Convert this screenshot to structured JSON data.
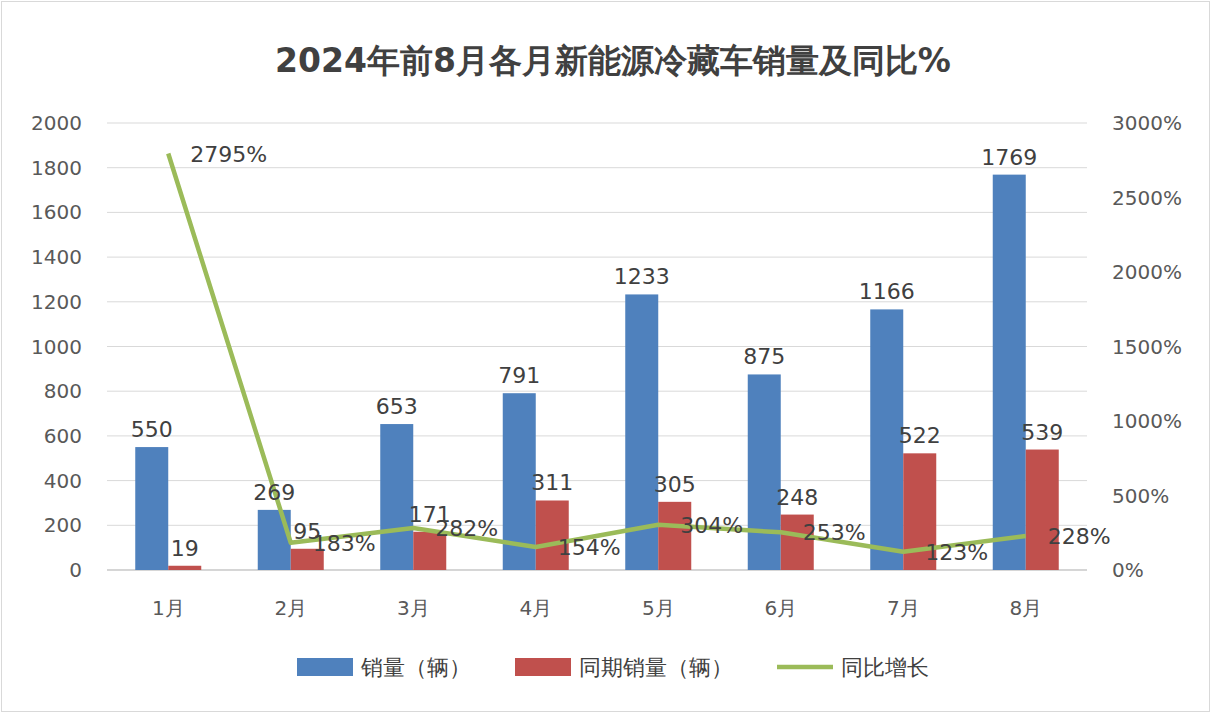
{
  "chart_data": {
    "type": "bar",
    "title": "2024年前8月各月新能源冷藏车销量及同比%",
    "categories": [
      "1月",
      "2月",
      "3月",
      "4月",
      "5月",
      "6月",
      "7月",
      "8月"
    ],
    "series": [
      {
        "name": "销量（辆）",
        "type": "bar",
        "color": "#4f81bd",
        "values": [
          550,
          269,
          653,
          791,
          1233,
          875,
          1166,
          1769
        ]
      },
      {
        "name": "同期销量（辆）",
        "type": "bar",
        "color": "#c0504d",
        "values": [
          19,
          95,
          171,
          311,
          305,
          248,
          522,
          539
        ]
      },
      {
        "name": "同比增长",
        "type": "line",
        "axis": "y2",
        "color": "#9bbb59",
        "values": [
          2795,
          183,
          282,
          154,
          304,
          253,
          123,
          228
        ],
        "value_labels": [
          "2795%",
          "183%",
          "282%",
          "154%",
          "304%",
          "253%",
          "123%",
          "228%"
        ]
      }
    ],
    "ylim": [
      0,
      2000
    ],
    "yticks": [
      0,
      200,
      400,
      600,
      800,
      1000,
      1200,
      1400,
      1600,
      1800,
      2000
    ],
    "y2lim": [
      0,
      3000
    ],
    "y2ticks": [
      {
        "value": 0,
        "label": "0%"
      },
      {
        "value": 500,
        "label": "500%"
      },
      {
        "value": 1000,
        "label": "1000%"
      },
      {
        "value": 1500,
        "label": "1500%"
      },
      {
        "value": 2000,
        "label": "2000%"
      },
      {
        "value": 2500,
        "label": "2500%"
      },
      {
        "value": 3000,
        "label": "3000%"
      }
    ],
    "grid": true,
    "legend": "bottom",
    "data_labels": true
  }
}
